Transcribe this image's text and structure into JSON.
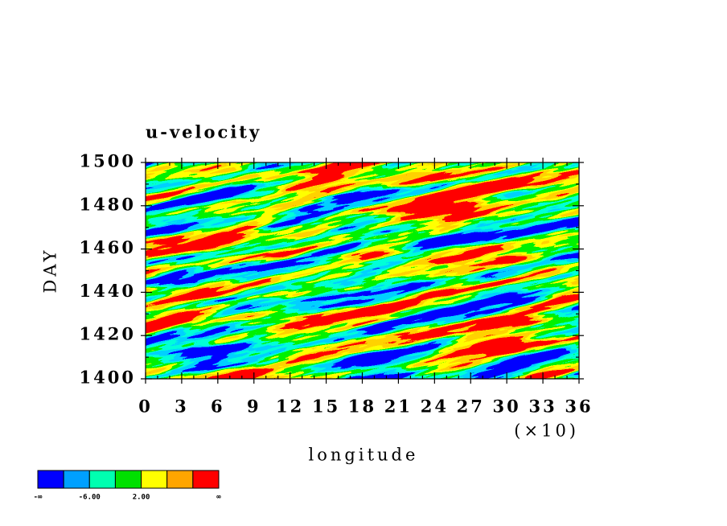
{
  "chart_data": {
    "type": "contour",
    "title": "u-velocity",
    "xlabel": "longitude",
    "ylabel": "DAY",
    "xlim": [
      0,
      36
    ],
    "xticks": [
      0,
      3,
      6,
      9,
      12,
      15,
      18,
      21,
      24,
      27,
      30,
      33,
      36
    ],
    "x_multiplier": "(×10)",
    "ylim": [
      1400,
      1500
    ],
    "yticks": [
      1400,
      1420,
      1440,
      1460,
      1480,
      1500
    ],
    "colorbar": {
      "colors": [
        "#0000ff",
        "#00a0ff",
        "#00ffb0",
        "#00e000",
        "#ffff00",
        "#ffa500",
        "#ff0000"
      ],
      "labels": [
        "-∞",
        "-6.00",
        "2.00",
        "∞"
      ]
    }
  }
}
